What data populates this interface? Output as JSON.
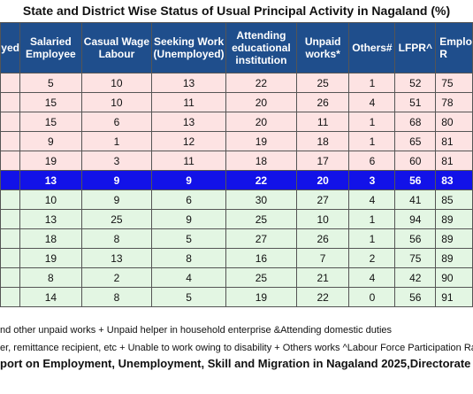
{
  "title": "State and District Wise Status of Usual Principal Activity in Nagaland (%)",
  "headers": [
    "yed",
    "Salaried Employee",
    "Casual Wage Labour",
    "Seeking Work (Unemployed)",
    "Attending educational institution",
    "Unpaid works*",
    "Others#",
    "LFPR^",
    "Emplo R"
  ],
  "rows": [
    {
      "style": "pink",
      "cells": [
        "",
        "5",
        "10",
        "13",
        "22",
        "25",
        "1",
        "52",
        "75"
      ]
    },
    {
      "style": "pink",
      "cells": [
        "",
        "15",
        "10",
        "11",
        "20",
        "26",
        "4",
        "51",
        "78"
      ]
    },
    {
      "style": "pink",
      "cells": [
        "",
        "15",
        "6",
        "13",
        "20",
        "11",
        "1",
        "68",
        "80"
      ]
    },
    {
      "style": "pink",
      "cells": [
        "",
        "9",
        "1",
        "12",
        "19",
        "18",
        "1",
        "65",
        "81"
      ]
    },
    {
      "style": "pink",
      "cells": [
        "",
        "19",
        "3",
        "11",
        "18",
        "17",
        "6",
        "60",
        "81"
      ]
    },
    {
      "style": "state",
      "cells": [
        "",
        "13",
        "9",
        "9",
        "22",
        "20",
        "3",
        "56",
        "83"
      ]
    },
    {
      "style": "green",
      "cells": [
        "",
        "10",
        "9",
        "6",
        "30",
        "27",
        "4",
        "41",
        "85"
      ]
    },
    {
      "style": "green",
      "cells": [
        "",
        "13",
        "25",
        "9",
        "25",
        "10",
        "1",
        "94",
        "89"
      ]
    },
    {
      "style": "green",
      "cells": [
        "",
        "18",
        "8",
        "5",
        "27",
        "26",
        "1",
        "56",
        "89"
      ]
    },
    {
      "style": "green",
      "cells": [
        "",
        "19",
        "13",
        "8",
        "16",
        "7",
        "2",
        "75",
        "89"
      ]
    },
    {
      "style": "green",
      "cells": [
        "",
        "8",
        "2",
        "4",
        "25",
        "21",
        "4",
        "42",
        "90"
      ]
    },
    {
      "style": "green",
      "cells": [
        "",
        "14",
        "8",
        "5",
        "19",
        "22",
        "0",
        "56",
        "91"
      ]
    }
  ],
  "notes": [
    "nd other unpaid works  + Unpaid helper in household enterprise &Attending domestic duties",
    "er, remittance recipient, etc  + Unable to work owing to disability +  Others works  ^Labour Force Participation Rat"
  ],
  "source": "port on Employment, Unemployment, Skill and Migration in Nagaland 2025,Directorate of E"
}
